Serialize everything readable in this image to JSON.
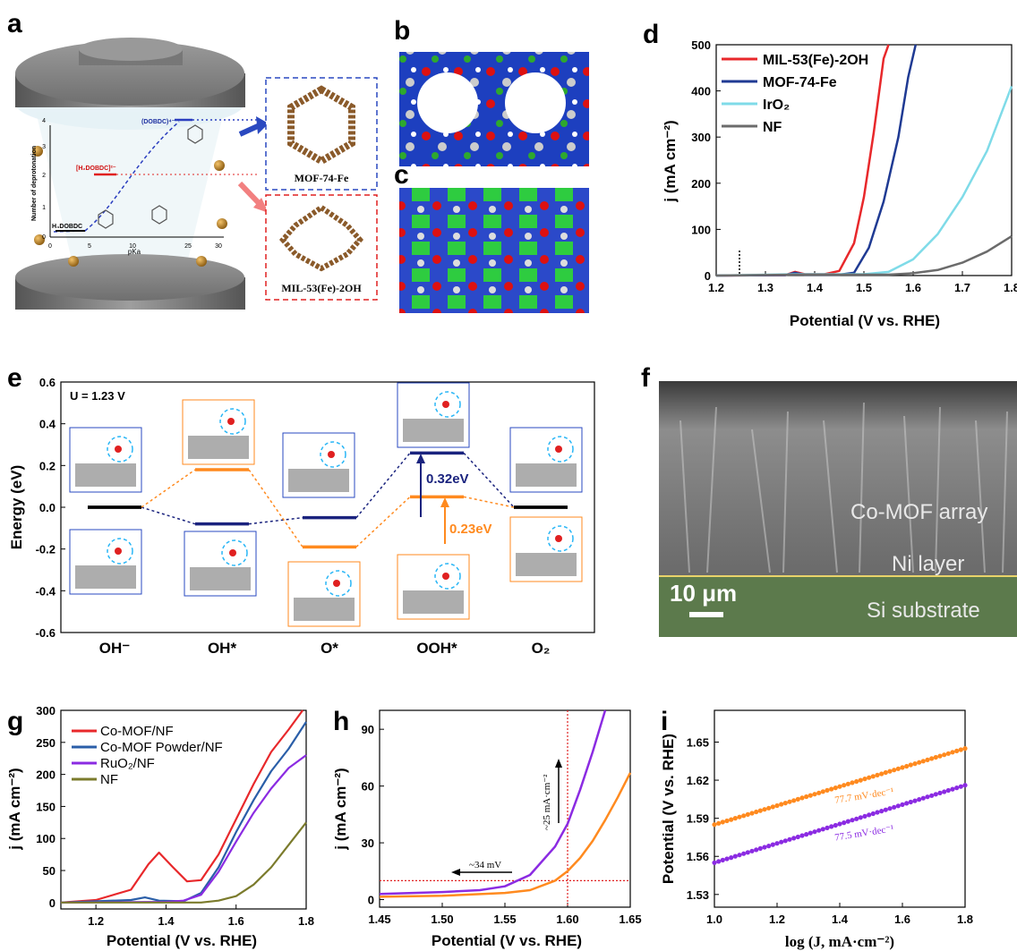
{
  "panel_labels": {
    "a": "a",
    "b": "b",
    "c": "c",
    "d": "d",
    "e": "e",
    "f": "f",
    "g": "g",
    "h": "h",
    "i": "i"
  },
  "panel_a": {
    "mof74_label": "MOF-74-Fe",
    "mil53_label": "MIL-53(Fe)-2OH",
    "ylabel": "Number of deprotonation",
    "xlabel": "pKa",
    "x_ticks": [
      "0",
      "5",
      "10",
      "25",
      "30"
    ],
    "y_ticks": [
      "0",
      "1",
      "2",
      "3",
      "4"
    ],
    "species_top": "(DOBDC)⁴⁻",
    "species_mid": "[H₂DOBDC]²⁻",
    "species_bottom": "H₄DOBDC"
  },
  "panel_f": {
    "label_array": "Co-MOF array",
    "label_ni": "Ni layer",
    "label_si": "Si substrate",
    "scale": "10 μm"
  },
  "colors": {
    "red": "#e8282b",
    "blue": "#1f3a93",
    "cyan": "#7fdbe8",
    "gray": "#6b6b6b",
    "orange": "#ff8a1f",
    "purple": "#8b2be2",
    "olive": "#7b7b2c",
    "navy": "#1a237e"
  },
  "chart_data": [
    {
      "id": "d",
      "type": "line",
      "xlabel": "Potential (V vs. RHE)",
      "ylabel": "j (mA cm⁻²)",
      "xlim": [
        1.2,
        1.8
      ],
      "ylim": [
        0,
        500
      ],
      "x_ticks": [
        "1.2",
        "1.3",
        "1.4",
        "1.5",
        "1.6",
        "1.7",
        "1.8"
      ],
      "y_ticks": [
        "0",
        "100",
        "200",
        "300",
        "400",
        "500"
      ],
      "legend_position": "top-left",
      "series": [
        {
          "name": "MIL-53(Fe)-2OH",
          "x": [
            1.2,
            1.34,
            1.36,
            1.38,
            1.42,
            1.45,
            1.48,
            1.5,
            1.52,
            1.54,
            1.55
          ],
          "y": [
            0,
            1,
            8,
            3,
            3,
            10,
            70,
            170,
            310,
            470,
            500
          ]
        },
        {
          "name": "MOF-74-Fe",
          "x": [
            1.2,
            1.34,
            1.36,
            1.38,
            1.45,
            1.48,
            1.51,
            1.54,
            1.57,
            1.59,
            1.605
          ],
          "y": [
            0,
            1,
            6,
            2,
            2,
            6,
            60,
            160,
            300,
            430,
            500
          ]
        },
        {
          "name": "IrO₂",
          "x": [
            1.2,
            1.36,
            1.5,
            1.55,
            1.6,
            1.65,
            1.7,
            1.75,
            1.8
          ],
          "y": [
            0,
            3,
            3,
            8,
            35,
            90,
            170,
            270,
            410
          ]
        },
        {
          "name": "NF",
          "x": [
            1.2,
            1.36,
            1.55,
            1.6,
            1.65,
            1.7,
            1.75,
            1.8
          ],
          "y": [
            0,
            2,
            2,
            5,
            12,
            28,
            52,
            85
          ]
        }
      ]
    },
    {
      "id": "e",
      "type": "line",
      "title": "U = 1.23 V",
      "ylabel": "Energy (eV)",
      "categories": [
        "OH⁻",
        "OH*",
        "O*",
        "OOH*",
        "O₂"
      ],
      "ylim": [
        -0.6,
        0.6
      ],
      "y_ticks": [
        "0.6",
        "0.4",
        "0.2",
        "0.0",
        "-0.2",
        "-0.4",
        "-0.6"
      ],
      "series": [
        {
          "values": [
            0.0,
            -0.08,
            -0.05,
            0.26,
            0.0
          ]
        },
        {
          "values": [
            0.0,
            0.18,
            -0.19,
            0.05,
            0.0
          ]
        }
      ],
      "annotations": [
        "0.32eV",
        "0.23eV"
      ]
    },
    {
      "id": "g",
      "type": "line",
      "xlabel": "Potential (V vs. RHE)",
      "ylabel": "j (mA cm⁻²)",
      "xlim": [
        1.1,
        1.8
      ],
      "ylim": [
        -10,
        300
      ],
      "x_ticks": [
        "1.2",
        "1.4",
        "1.6",
        "1.8"
      ],
      "y_ticks": [
        "0",
        "50",
        "100",
        "150",
        "200",
        "250",
        "300"
      ],
      "legend_position": "top-left",
      "series": [
        {
          "name": "Co-MOF/NF",
          "x": [
            1.1,
            1.2,
            1.3,
            1.35,
            1.38,
            1.42,
            1.46,
            1.5,
            1.55,
            1.6,
            1.65,
            1.7,
            1.75,
            1.79
          ],
          "y": [
            0,
            4,
            20,
            60,
            78,
            55,
            33,
            35,
            75,
            130,
            185,
            235,
            270,
            300
          ]
        },
        {
          "name": "Co-MOF Powder/NF",
          "x": [
            1.1,
            1.3,
            1.34,
            1.38,
            1.45,
            1.5,
            1.55,
            1.6,
            1.65,
            1.7,
            1.75,
            1.8
          ],
          "y": [
            0,
            4,
            8,
            3,
            2,
            15,
            55,
            110,
            160,
            205,
            240,
            282
          ]
        },
        {
          "name": "RuO₂/NF",
          "x": [
            1.1,
            1.4,
            1.45,
            1.5,
            1.55,
            1.6,
            1.65,
            1.7,
            1.75,
            1.8
          ],
          "y": [
            0,
            1,
            3,
            12,
            48,
            95,
            140,
            178,
            210,
            230
          ]
        },
        {
          "name": "NF",
          "x": [
            1.1,
            1.5,
            1.55,
            1.6,
            1.65,
            1.7,
            1.75,
            1.8
          ],
          "y": [
            0,
            0,
            3,
            10,
            28,
            55,
            90,
            125
          ]
        }
      ]
    },
    {
      "id": "h",
      "type": "line",
      "xlabel": "Potential (V vs. RHE)",
      "ylabel": "j (mA cm⁻²)",
      "xlim": [
        1.45,
        1.65
      ],
      "ylim": [
        -4,
        100
      ],
      "x_ticks": [
        "1.45",
        "1.50",
        "1.55",
        "1.60",
        "1.65"
      ],
      "y_ticks": [
        "0",
        "30",
        "60",
        "90"
      ],
      "series": [
        {
          "x": [
            1.45,
            1.5,
            1.53,
            1.55,
            1.57,
            1.59,
            1.6,
            1.61,
            1.62,
            1.63
          ],
          "y": [
            3,
            4,
            5,
            7,
            13,
            28,
            40,
            58,
            78,
            100
          ]
        },
        {
          "x": [
            1.45,
            1.5,
            1.55,
            1.57,
            1.59,
            1.6,
            1.61,
            1.62,
            1.63,
            1.64,
            1.65
          ],
          "y": [
            1.5,
            2,
            3.5,
            5,
            10,
            15,
            22,
            31,
            42,
            54,
            67
          ]
        }
      ],
      "annotations": [
        "~25 mA·cm⁻²",
        "~34 mV"
      ],
      "reference_lines": {
        "x": 1.6,
        "y": 10
      }
    },
    {
      "id": "i",
      "type": "scatter",
      "xlabel": "log (J, mA·cm⁻²)",
      "ylabel": "Potential (V vs. RHE)",
      "xlim": [
        1.0,
        1.8
      ],
      "ylim": [
        1.52,
        1.675
      ],
      "x_ticks": [
        "1.0",
        "1.2",
        "1.4",
        "1.6",
        "1.8"
      ],
      "y_ticks": [
        "1.53",
        "1.56",
        "1.59",
        "1.62",
        "1.65"
      ],
      "series": [
        {
          "label": "77.7 mV·dec⁻¹",
          "x_start": 1.0,
          "x_end": 1.8,
          "y_start": 1.585,
          "y_end": 1.645
        },
        {
          "label": "77.5 mV·dec⁻¹",
          "x_start": 1.0,
          "x_end": 1.8,
          "y_start": 1.555,
          "y_end": 1.616
        }
      ]
    }
  ]
}
